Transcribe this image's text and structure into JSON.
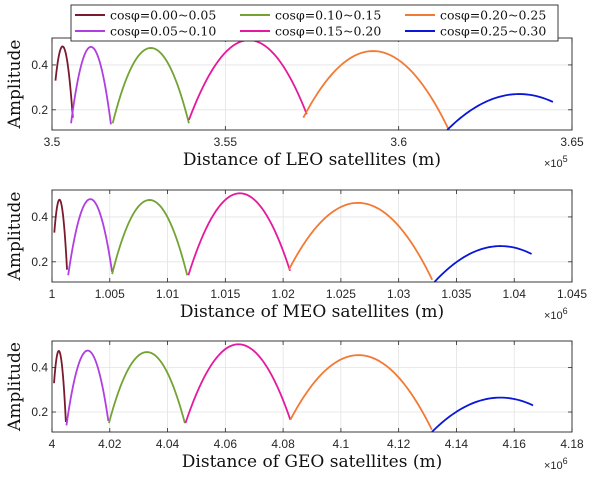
{
  "legend": {
    "placement": "top",
    "entries": [
      {
        "label": "cosφ=0.00~0.05",
        "color": "#7a1a2e"
      },
      {
        "label": "cosφ=0.05~0.10",
        "color": "#b03ee0"
      },
      {
        "label": "cosφ=0.10~0.15",
        "color": "#73a333"
      },
      {
        "label": "cosφ=0.15~0.20",
        "color": "#e5199e"
      },
      {
        "label": "cosφ=0.20~0.25",
        "color": "#f27a34"
      },
      {
        "label": "cosφ=0.25~0.30",
        "color": "#0a16d8"
      }
    ]
  },
  "chart_data": [
    {
      "type": "line",
      "xlabel": "Distance of LEO satellites (m)",
      "ylabel": "Amplitude",
      "x_exponent_label": "×10",
      "x_exponent": "5",
      "xlim": [
        3.5,
        3.65
      ],
      "ylim": [
        0.11,
        0.52
      ],
      "xticks": [
        3.5,
        3.55,
        3.6,
        3.65
      ],
      "xtick_labels": [
        "3.5",
        "3.55",
        "3.6",
        "3.65"
      ],
      "yticks": [
        0.2,
        0.4
      ],
      "ytick_labels": [
        "0.2",
        "0.4"
      ],
      "grid": true,
      "series": [
        {
          "name": "cosφ=0.00~0.05",
          "color": "#7a1a2e",
          "x": [
            3.501,
            3.5035,
            3.506
          ],
          "y": [
            0.33,
            0.475,
            0.165
          ]
        },
        {
          "name": "cosφ=0.05~0.10",
          "color": "#b03ee0",
          "x": [
            3.5055,
            3.5105,
            3.517
          ],
          "y": [
            0.14,
            0.475,
            0.135
          ]
        },
        {
          "name": "cosφ=0.10~0.15",
          "color": "#73a333",
          "x": [
            3.5175,
            3.528,
            3.5395
          ],
          "y": [
            0.14,
            0.475,
            0.14
          ]
        },
        {
          "name": "cosφ=0.15~0.20",
          "color": "#e5199e",
          "x": [
            3.5395,
            3.5575,
            3.5735
          ],
          "y": [
            0.155,
            0.51,
            0.18
          ]
        },
        {
          "name": "cosφ=0.20~0.25",
          "color": "#f27a34",
          "x": [
            3.5725,
            3.591,
            3.6145
          ],
          "y": [
            0.165,
            0.46,
            0.11
          ]
        },
        {
          "name": "cosφ=0.25~0.30",
          "color": "#0a16d8",
          "x": [
            3.614,
            3.6355,
            3.6445
          ],
          "y": [
            0.11,
            0.27,
            0.235
          ]
        }
      ]
    },
    {
      "type": "line",
      "xlabel": "Distance of MEO satellites (m)",
      "ylabel": "Amplitude",
      "x_exponent_label": "×10",
      "x_exponent": "6",
      "xlim": [
        1.0,
        1.045
      ],
      "ylim": [
        0.11,
        0.52
      ],
      "xticks": [
        1.0,
        1.005,
        1.01,
        1.015,
        1.02,
        1.025,
        1.03,
        1.035,
        1.04,
        1.045
      ],
      "xtick_labels": [
        "1",
        "1.005",
        "1.01",
        "1.015",
        "1.02",
        "1.025",
        "1.03",
        "1.035",
        "1.04",
        "1.045"
      ],
      "yticks": [
        0.2,
        0.4
      ],
      "ytick_labels": [
        "0.2",
        "0.4"
      ],
      "grid": true,
      "series": [
        {
          "name": "cosφ=0.00~0.05",
          "color": "#7a1a2e",
          "x": [
            1.0002,
            1.0006,
            1.0013
          ],
          "y": [
            0.33,
            0.475,
            0.165
          ]
        },
        {
          "name": "cosφ=0.05~0.10",
          "color": "#b03ee0",
          "x": [
            1.0014,
            1.0031,
            1.0052
          ],
          "y": [
            0.14,
            0.475,
            0.155
          ]
        },
        {
          "name": "cosφ=0.10~0.15",
          "color": "#73a333",
          "x": [
            1.0052,
            1.0083,
            1.0117
          ],
          "y": [
            0.145,
            0.475,
            0.14
          ]
        },
        {
          "name": "cosφ=0.15~0.20",
          "color": "#e5199e",
          "x": [
            1.0118,
            1.0161,
            1.0206
          ],
          "y": [
            0.14,
            0.505,
            0.16
          ]
        },
        {
          "name": "cosφ=0.20~0.25",
          "color": "#f27a34",
          "x": [
            1.0205,
            1.0259,
            1.0329
          ],
          "y": [
            0.165,
            0.46,
            0.12
          ]
        },
        {
          "name": "cosφ=0.25~0.30",
          "color": "#0a16d8",
          "x": [
            1.0331,
            1.0387,
            1.0415
          ],
          "y": [
            0.11,
            0.27,
            0.235
          ]
        }
      ]
    },
    {
      "type": "line",
      "xlabel": "Distance of GEO satellites (m)",
      "ylabel": "Amplitude",
      "x_exponent_label": "×10",
      "x_exponent": "6",
      "xlim": [
        4.0,
        4.18
      ],
      "ylim": [
        0.11,
        0.52
      ],
      "xticks": [
        4.0,
        4.02,
        4.04,
        4.06,
        4.08,
        4.1,
        4.12,
        4.14,
        4.16,
        4.18
      ],
      "xtick_labels": [
        "4",
        "4.02",
        "4.04",
        "4.06",
        "4.08",
        "4.1",
        "4.12",
        "4.14",
        "4.16",
        "4.18"
      ],
      "yticks": [
        0.2,
        0.4
      ],
      "ytick_labels": [
        "0.2",
        "0.4"
      ],
      "grid": true,
      "series": [
        {
          "name": "cosφ=0.00~0.05",
          "color": "#7a1a2e",
          "x": [
            4.0007,
            4.0023,
            4.0048
          ],
          "y": [
            0.33,
            0.475,
            0.155
          ]
        },
        {
          "name": "cosφ=0.05~0.10",
          "color": "#b03ee0",
          "x": [
            4.005,
            4.0118,
            4.0195
          ],
          "y": [
            0.14,
            0.475,
            0.16
          ]
        },
        {
          "name": "cosφ=0.10~0.15",
          "color": "#73a333",
          "x": [
            4.0197,
            4.0325,
            4.046
          ],
          "y": [
            0.15,
            0.47,
            0.15
          ]
        },
        {
          "name": "cosφ=0.15~0.20",
          "color": "#e5199e",
          "x": [
            4.0462,
            4.064,
            4.0825
          ],
          "y": [
            0.15,
            0.505,
            0.165
          ]
        },
        {
          "name": "cosφ=0.20~0.25",
          "color": "#f27a34",
          "x": [
            4.0825,
            4.1045,
            4.1315
          ],
          "y": [
            0.165,
            0.455,
            0.12
          ]
        },
        {
          "name": "cosφ=0.25~0.30",
          "color": "#0a16d8",
          "x": [
            4.1315,
            4.155,
            4.1665
          ],
          "y": [
            0.11,
            0.265,
            0.23
          ]
        }
      ]
    }
  ]
}
